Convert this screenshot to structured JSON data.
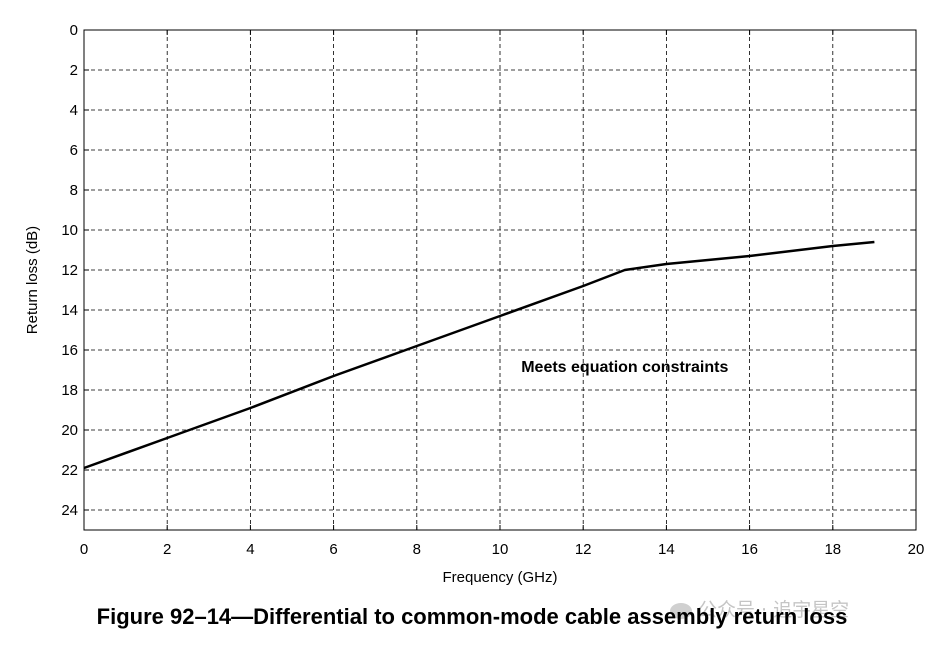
{
  "chart_data": {
    "type": "line",
    "xlabel": "Frequency (GHz)",
    "ylabel": "Return loss (dB)",
    "xlim": [
      0,
      20
    ],
    "ylim": [
      0,
      25
    ],
    "y_inverted": true,
    "xticks": [
      "0",
      "2",
      "4",
      "6",
      "8",
      "10",
      "12",
      "14",
      "16",
      "18",
      "20"
    ],
    "yticks": [
      "0",
      "2",
      "4",
      "6",
      "8",
      "10",
      "12",
      "14",
      "16",
      "18",
      "20",
      "22",
      "24"
    ],
    "grid": true,
    "grid_style": "dashed",
    "series": [
      {
        "color": "#000000",
        "x": [
          0,
          2,
          4,
          6,
          8,
          10,
          12,
          13,
          14,
          16,
          18,
          19
        ],
        "y": [
          21.9,
          20.4,
          18.9,
          17.3,
          15.8,
          14.3,
          12.8,
          12.0,
          11.7,
          11.3,
          10.8,
          10.6
        ]
      }
    ],
    "annotations": [
      {
        "text": "Meets equation constraints",
        "x": 13.0,
        "y": 16.8
      }
    ]
  },
  "caption": "Figure 92–14—Differential to common-mode cable assembly return loss",
  "watermark": "公众号 · 追宇星空"
}
